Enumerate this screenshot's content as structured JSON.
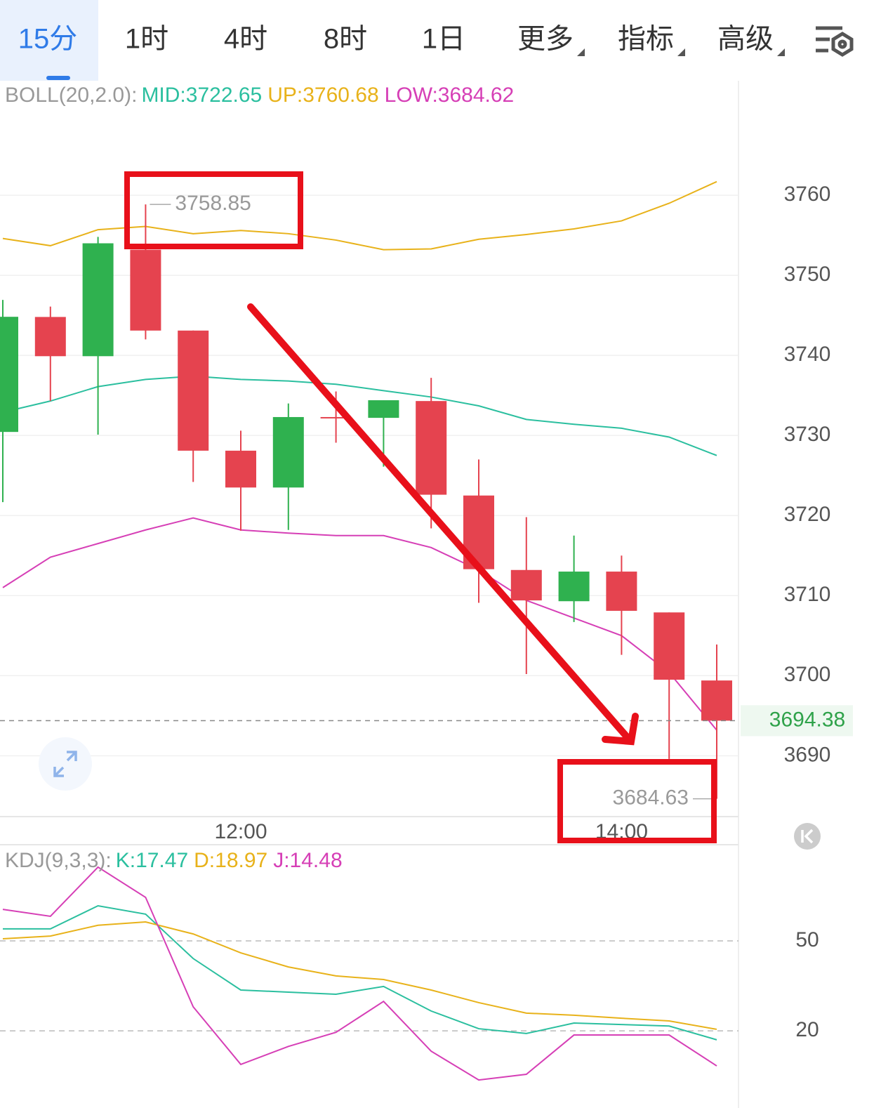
{
  "toolbar": {
    "tabs": [
      "15分",
      "1时",
      "4时",
      "8时",
      "1日",
      "更多",
      "指标",
      "高级"
    ],
    "active": 0
  },
  "chart_data": [
    {
      "type": "candlestick",
      "indicator": "BOLL(20,2.0):",
      "categories": [
        null,
        null,
        null,
        null,
        null,
        "12:00",
        null,
        null,
        null,
        null,
        null,
        null,
        null,
        "14:00",
        null,
        null
      ],
      "open": [
        3730.44,
        3744.8,
        3739.9,
        3753.2,
        3743.1,
        3728.1,
        3723.5,
        3732.3,
        3732.2,
        3734.3,
        3722.5,
        3713.2,
        3709.3,
        3713.0,
        3707.9,
        3699.4
      ],
      "high": [
        3746.93,
        3746.1,
        3754.8,
        3758.85,
        3743.1,
        3730.6,
        3734.0,
        3735.5,
        3734.4,
        3737.2,
        3727.0,
        3719.8,
        3717.5,
        3715.0,
        3707.9,
        3703.9
      ],
      "low": [
        3721.67,
        3734.3,
        3730.1,
        3742.0,
        3724.2,
        3718.1,
        3718.2,
        3729.1,
        3726.1,
        3718.4,
        3709.1,
        3700.2,
        3706.7,
        3702.6,
        3689.6,
        3684.63
      ],
      "close": [
        3744.82,
        3739.9,
        3754.0,
        3743.1,
        3728.1,
        3723.5,
        3732.3,
        3732.2,
        3734.4,
        3722.6,
        3713.3,
        3709.4,
        3713.0,
        3708.1,
        3699.5,
        3694.38
      ],
      "up_color": "#2fb14f",
      "down_color": "#e5434f",
      "series": [
        {
          "name": "MID:3722.65",
          "color": "#2bbf9f",
          "values": [
            3732.9,
            3734.3,
            3736.1,
            3737.0,
            3737.4,
            3737.0,
            3736.8,
            3736.4,
            3735.6,
            3734.8,
            3733.7,
            3732.0,
            3731.4,
            3730.9,
            3729.8,
            3727.5
          ]
        },
        {
          "name": "UP:3760.68",
          "color": "#e8b21a",
          "values": [
            3754.6,
            3753.7,
            3755.7,
            3756.1,
            3755.2,
            3755.6,
            3755.2,
            3754.4,
            3753.2,
            3753.3,
            3754.5,
            3755.1,
            3755.8,
            3756.8,
            3759.0,
            3761.7
          ]
        },
        {
          "name": "LOW:3684.62",
          "color": "#d63fb6",
          "values": [
            3711.0,
            3714.8,
            3716.5,
            3718.2,
            3719.7,
            3718.2,
            3717.8,
            3717.5,
            3717.5,
            3716.0,
            3713.2,
            3709.4,
            3707.2,
            3705.0,
            3700.4,
            3693.2
          ]
        }
      ],
      "ylim": [
        3682.4,
        3774.3
      ],
      "yticks": [
        3690,
        3700,
        3710,
        3720,
        3730,
        3740,
        3750,
        3760
      ],
      "grid": true
    },
    {
      "type": "line",
      "indicator": "KDJ(9,3,3):",
      "series": [
        {
          "name": "K:17.47",
          "color": "#2bbf9f",
          "values": [
            54.0,
            54.0,
            61.7,
            58.9,
            44.1,
            33.6,
            32.9,
            32.2,
            34.8,
            26.6,
            20.7,
            19.1,
            22.6,
            22.1,
            21.6,
            17.0
          ]
        },
        {
          "name": "D:18.97",
          "color": "#e8b21a",
          "values": [
            50.7,
            51.6,
            55.2,
            56.3,
            52.3,
            46.0,
            41.3,
            38.3,
            37.1,
            33.6,
            29.4,
            25.9,
            25.2,
            24.2,
            23.3,
            20.5
          ]
        },
        {
          "name": "J:14.48",
          "color": "#d63fb6",
          "values": [
            60.5,
            58.2,
            74.6,
            64.5,
            28.0,
            8.8,
            14.8,
            19.5,
            29.8,
            13.2,
            3.6,
            5.5,
            18.6,
            18.6,
            18.6,
            8.3
          ]
        }
      ],
      "ylim": [
        -3.4,
        81.6
      ],
      "yticks": [
        20,
        50
      ],
      "grid": true
    }
  ]
}
